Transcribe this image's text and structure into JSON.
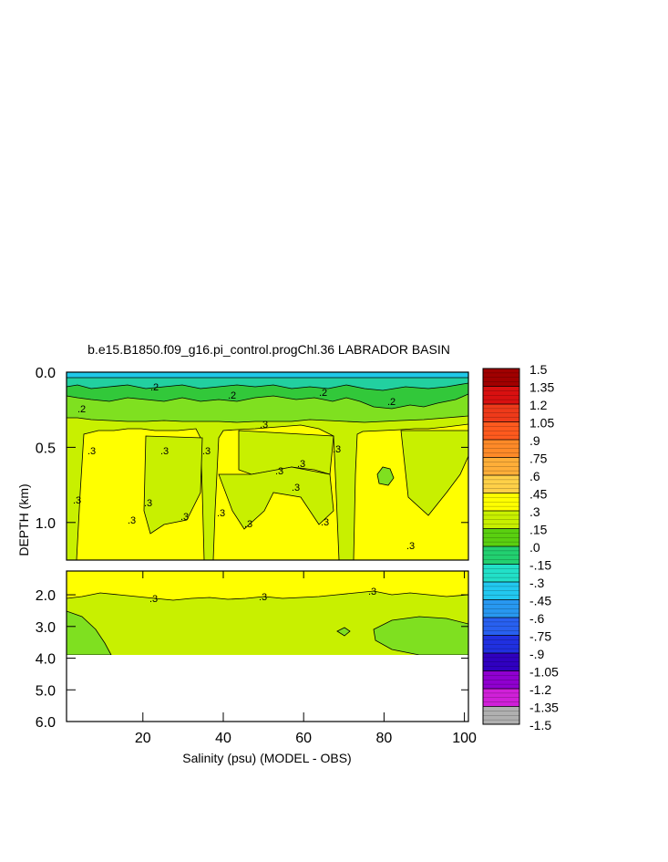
{
  "chart_data": {
    "type": "heatmap",
    "title": "b.e15.B1850.f09_g16.pi_control.progChl.36 LABRADOR BASIN",
    "xlabel": "Salinity (psu) (MODEL - OBS)",
    "ylabel": "DEPTH (km)",
    "xlim": [
      1,
      101
    ],
    "x_ticks": [
      "20",
      "40",
      "60",
      "80",
      "100"
    ],
    "x_tick_values": [
      20,
      40,
      60,
      80,
      100
    ],
    "upper_panel": {
      "ylim": [
        0.0,
        1.25
      ],
      "y_ticks": [
        "0.0",
        "0.5",
        "1.0"
      ],
      "y_tick_values": [
        0.0,
        0.5,
        1.0
      ]
    },
    "lower_panel": {
      "ylim": [
        1.25,
        6.0
      ],
      "y_ticks": [
        "2.0",
        "3.0",
        "4.0",
        "5.0",
        "6.0"
      ],
      "y_tick_values": [
        2.0,
        3.0,
        4.0,
        5.0,
        6.0
      ],
      "data_bottom_depth": 3.8
    },
    "contour_labels": [
      ".2",
      ".2",
      ".2",
      ".2",
      ".2",
      ".3",
      ".3",
      ".3",
      ".3",
      ".3",
      ".3",
      ".3",
      ".3",
      ".3",
      ".3",
      ".3",
      ".3",
      ".3",
      ".3",
      ".3",
      ".3",
      ".3",
      ".3",
      ".3"
    ],
    "colorbar": {
      "labels": [
        "1.5",
        "1.35",
        "1.2",
        "1.05",
        ".9",
        ".75",
        ".6",
        ".45",
        ".3",
        ".15",
        ".0",
        "-.15",
        "-.3",
        "-.45",
        "-.6",
        "-.75",
        "-.9",
        "-1.05",
        "-1.2",
        "-1.35",
        "-1.5"
      ],
      "values": [
        1.5,
        1.35,
        1.2,
        1.05,
        0.9,
        0.75,
        0.6,
        0.45,
        0.3,
        0.15,
        0.0,
        -0.15,
        -0.3,
        -0.45,
        -0.6,
        -0.75,
        -0.9,
        -1.05,
        -1.2,
        -1.35,
        -1.5
      ],
      "colors": [
        "#a00000",
        "#d81010",
        "#ee3a1a",
        "#ff5a1e",
        "#ff8a28",
        "#ffae38",
        "#ffd048",
        "#ffff00",
        "#c8f000",
        "#5ad010",
        "#22d070",
        "#22e0c8",
        "#22c8f0",
        "#2898f0",
        "#2860f0",
        "#2030e0",
        "#3000c0",
        "#9000d0",
        "#d020d8",
        "#b0b0b0",
        "#707070"
      ]
    }
  }
}
